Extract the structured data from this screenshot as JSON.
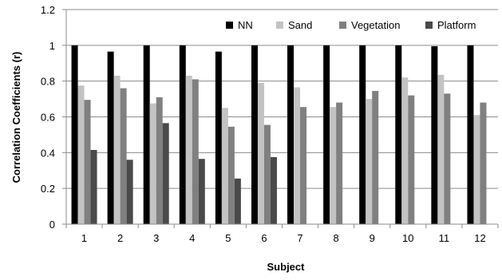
{
  "chart_data": {
    "type": "bar",
    "title": "",
    "xlabel": "Subject",
    "ylabel": "Correlation Coefficients (r)",
    "ylim": [
      0,
      1.2
    ],
    "yticks": [
      "0",
      "0.2",
      "0.4",
      "0.6",
      "0.8",
      "1",
      "1.2"
    ],
    "categories": [
      "1",
      "2",
      "3",
      "4",
      "5",
      "6",
      "7",
      "8",
      "9",
      "10",
      "11",
      "12"
    ],
    "grid": true,
    "legend": "top-right",
    "series": [
      {
        "name": "NN",
        "color": "#000000",
        "values": [
          1.0,
          0.965,
          1.0,
          1.0,
          0.965,
          1.0,
          1.0,
          1.0,
          1.0,
          1.0,
          0.995,
          1.0
        ]
      },
      {
        "name": "Sand",
        "color": "#c3c3c3",
        "values": [
          0.775,
          0.83,
          0.675,
          0.83,
          0.65,
          0.79,
          0.765,
          0.655,
          0.7,
          0.82,
          0.835,
          0.61
        ]
      },
      {
        "name": "Vegetation",
        "color": "#808080",
        "values": [
          0.695,
          0.76,
          0.71,
          0.81,
          0.545,
          0.555,
          0.655,
          0.68,
          0.745,
          0.72,
          0.73,
          0.68
        ]
      },
      {
        "name": "Platform",
        "color": "#4a4a4a",
        "values": [
          0.415,
          0.36,
          0.565,
          0.365,
          0.255,
          0.375,
          null,
          null,
          null,
          null,
          null,
          null
        ]
      }
    ]
  }
}
